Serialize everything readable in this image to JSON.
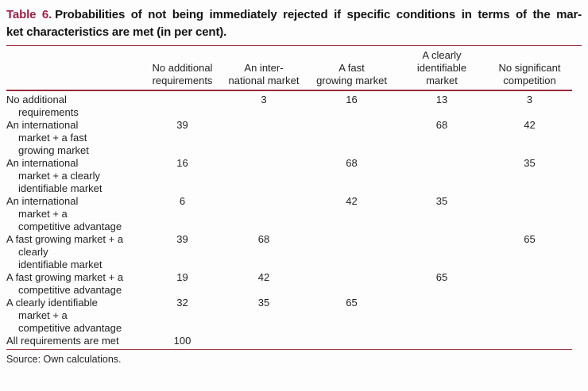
{
  "colors": {
    "accent_red": "#9c2145",
    "rule_red": "#9b2c3c"
  },
  "caption": {
    "label": "Table 6.",
    "line1_rest": "Probabilities of not being immediately rejected if specific conditions in terms of the mar-",
    "line2": "ket characteristics are met (in per cent)."
  },
  "table": {
    "columns": [
      {
        "lines": []
      },
      {
        "lines": [
          "No additional",
          "requirements"
        ]
      },
      {
        "lines": [
          "An inter-",
          "national market"
        ]
      },
      {
        "lines": [
          "A fast",
          "growing market"
        ]
      },
      {
        "lines": [
          "A clearly",
          "identifiable",
          "market"
        ]
      },
      {
        "lines": [
          "No significant",
          "competition"
        ]
      }
    ],
    "rows": [
      {
        "label_lines": [
          "No additional",
          "requirements"
        ],
        "values": [
          "",
          "3",
          "16",
          "13",
          "3"
        ]
      },
      {
        "label_lines": [
          "An international",
          "market + a fast",
          "growing market"
        ],
        "values": [
          "39",
          "",
          "",
          "68",
          "42"
        ]
      },
      {
        "label_lines": [
          "An international",
          "market + a clearly",
          "identifiable market"
        ],
        "values": [
          "16",
          "",
          "68",
          "",
          "35"
        ]
      },
      {
        "label_lines": [
          "An international",
          "market + a",
          "competitive advantage"
        ],
        "values": [
          "6",
          "",
          "42",
          "35",
          ""
        ]
      },
      {
        "label_lines": [
          "A fast growing market + a",
          "clearly",
          "identifiable market"
        ],
        "values": [
          "39",
          "68",
          "",
          "",
          "65"
        ]
      },
      {
        "label_lines": [
          "A fast growing market + a",
          "competitive advantage"
        ],
        "values": [
          "19",
          "42",
          "",
          "65",
          ""
        ]
      },
      {
        "label_lines": [
          "A clearly identifiable",
          "market + a",
          "competitive advantage"
        ],
        "values": [
          "32",
          "35",
          "65",
          "",
          ""
        ]
      },
      {
        "label_lines": [
          "All requirements are met"
        ],
        "values": [
          "100",
          "",
          "",
          "",
          ""
        ]
      }
    ]
  },
  "footer": {
    "source": "Source: Own calculations."
  }
}
